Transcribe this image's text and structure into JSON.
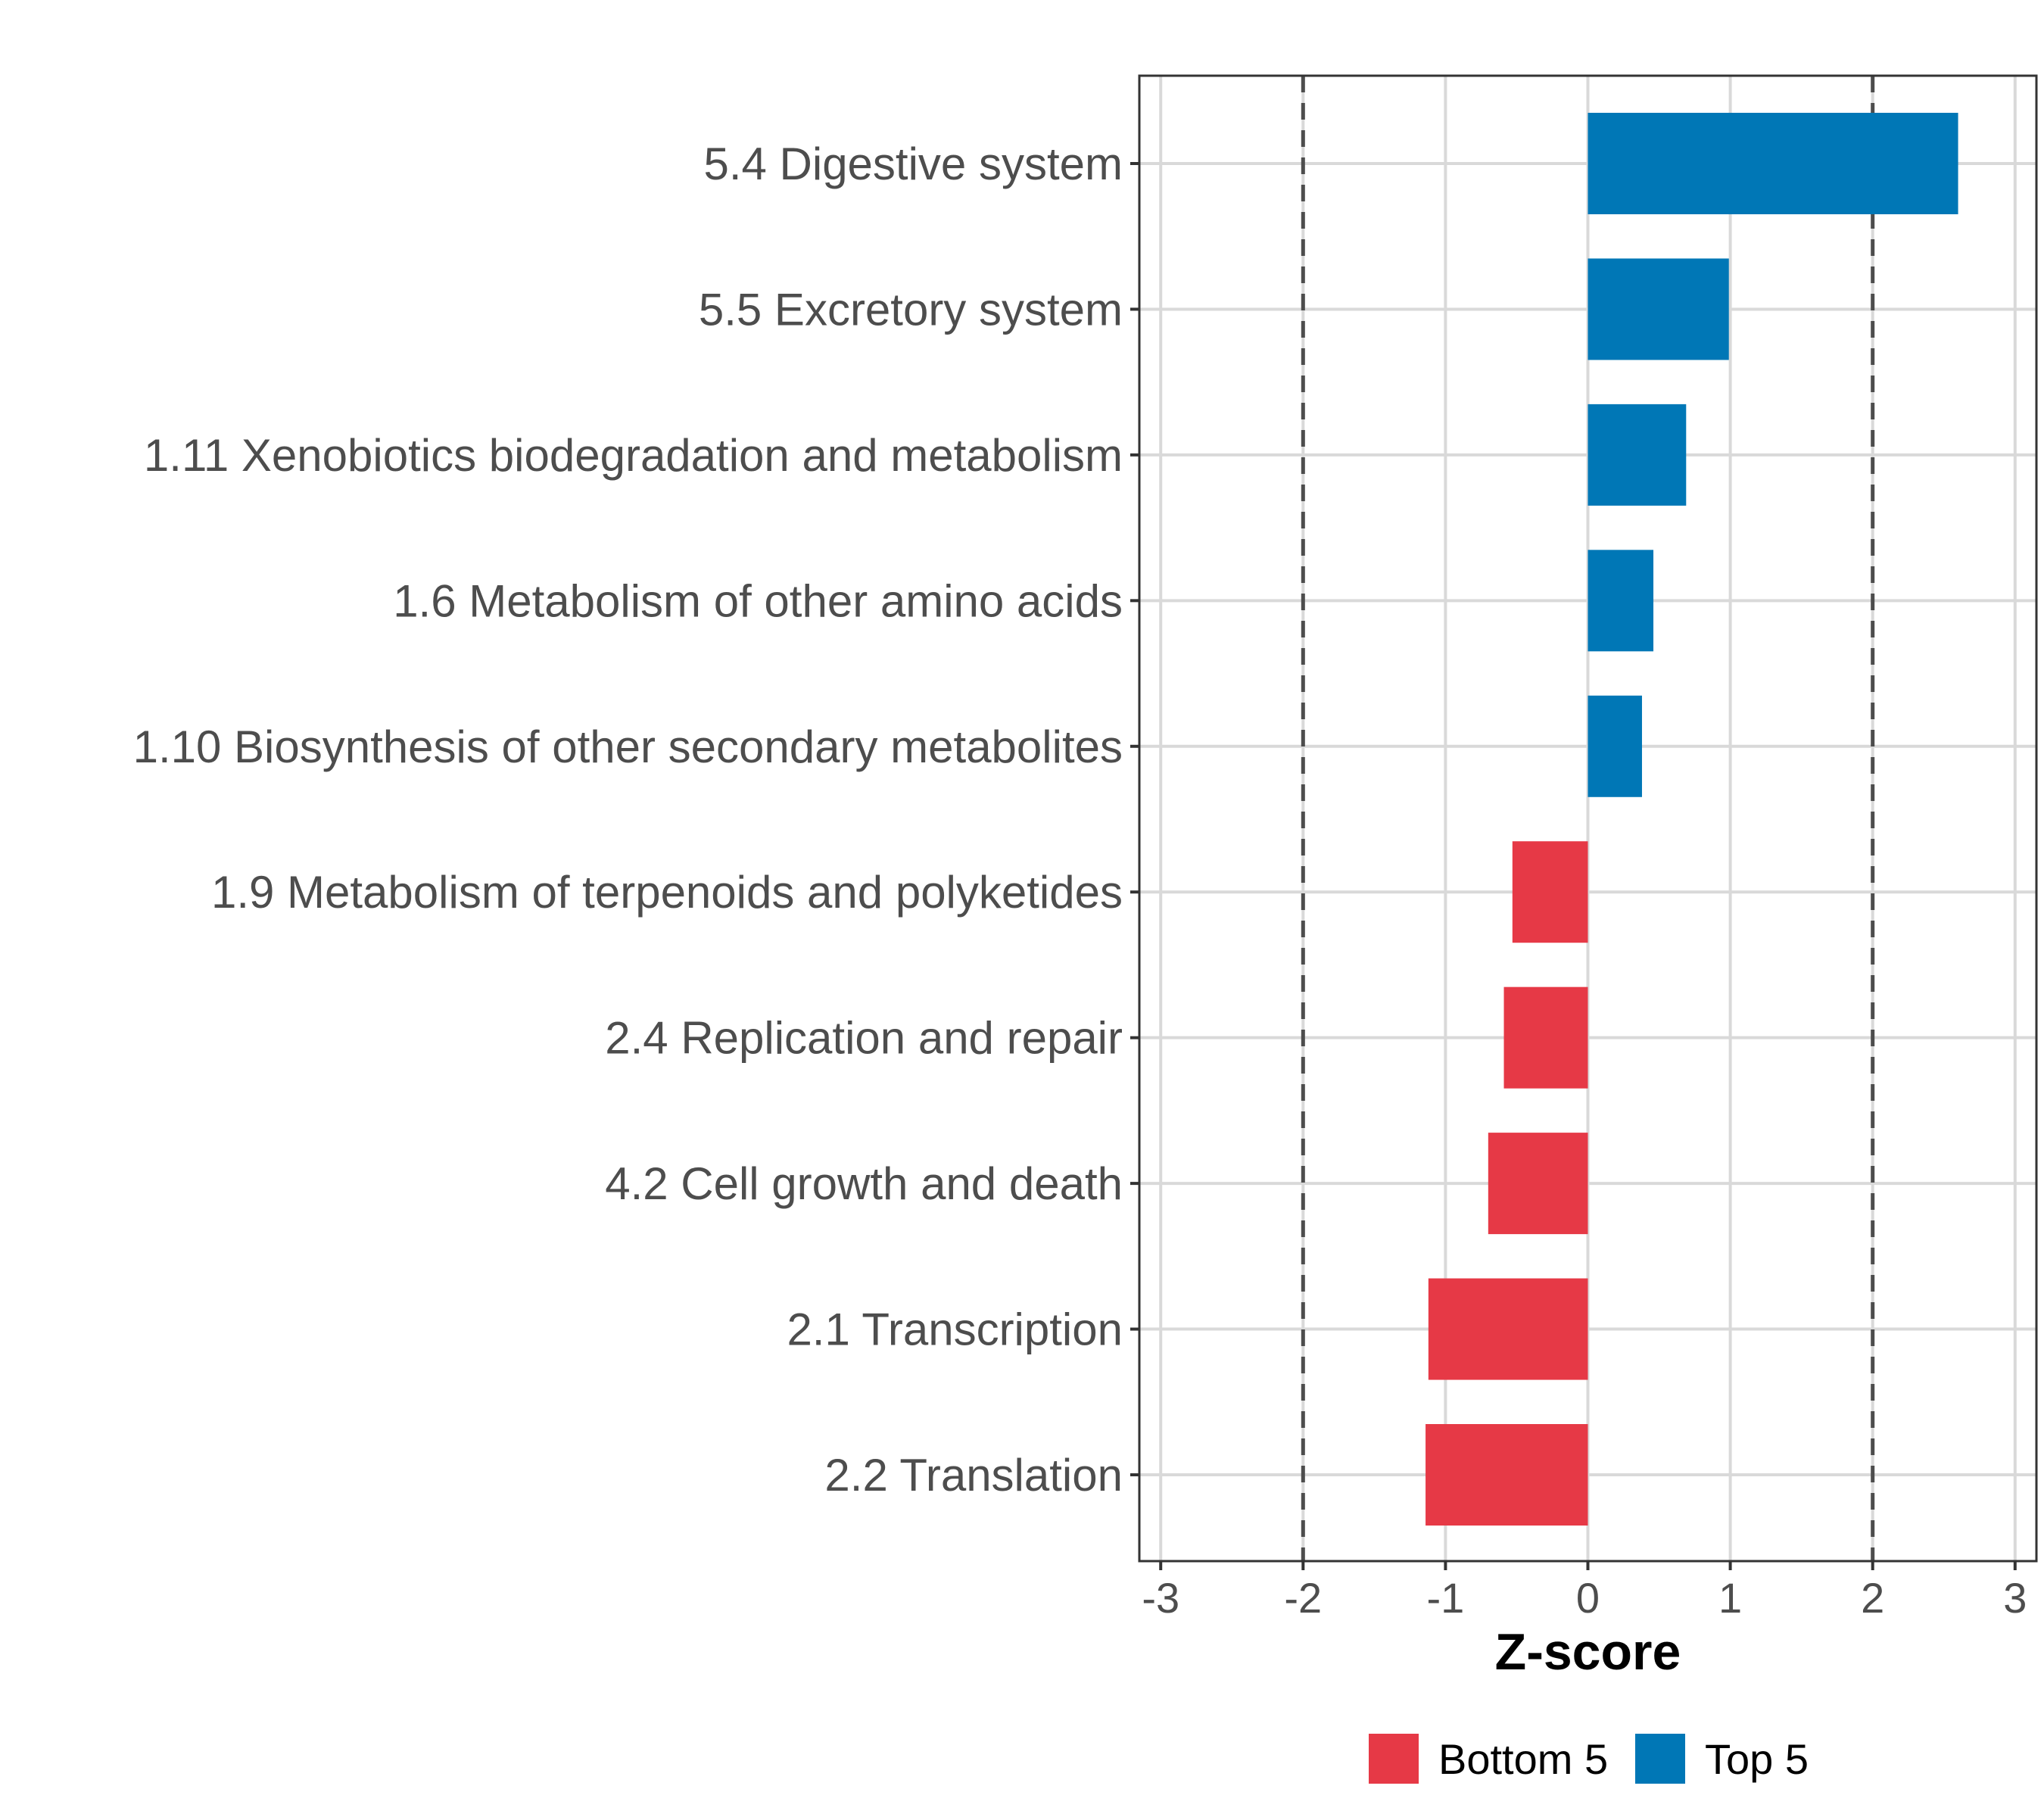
{
  "chart_data": {
    "type": "bar",
    "orientation": "horizontal",
    "categories": [
      "5.4 Digestive system",
      "5.5 Excretory system",
      "1.11 Xenobiotics biodegradation and metabolism",
      "1.6 Metabolism of other amino acids",
      "1.10 Biosynthesis of other secondary metabolites",
      "1.9 Metabolism of terpenoids and polyketides",
      "2.4 Replication and repair",
      "4.2 Cell growth and death",
      "2.1 Transcription",
      "2.2 Translation"
    ],
    "values": [
      2.6,
      0.99,
      0.69,
      0.46,
      0.38,
      -0.53,
      -0.59,
      -0.7,
      -1.12,
      -1.14
    ],
    "groups": [
      "Top 5",
      "Top 5",
      "Top 5",
      "Top 5",
      "Top 5",
      "Bottom 5",
      "Bottom 5",
      "Bottom 5",
      "Bottom 5",
      "Bottom 5"
    ],
    "xlabel": "Z-score",
    "ylabel": "",
    "xlim": [
      -3.15,
      3.15
    ],
    "xticks": [
      -3,
      -2,
      -1,
      0,
      1,
      2,
      3
    ],
    "xtick_labels": [
      "-3",
      "-2",
      "-1",
      "0",
      "1",
      "2",
      "3"
    ],
    "reference_lines": [
      -2,
      2
    ],
    "grid": true,
    "legend": {
      "position": "bottom",
      "entries": [
        {
          "label": "Bottom 5",
          "color": "#e63946"
        },
        {
          "label": "Top 5",
          "color": "#0077b6"
        }
      ]
    },
    "colors": {
      "Bottom 5": "#e63946",
      "Top 5": "#0077b6"
    }
  }
}
